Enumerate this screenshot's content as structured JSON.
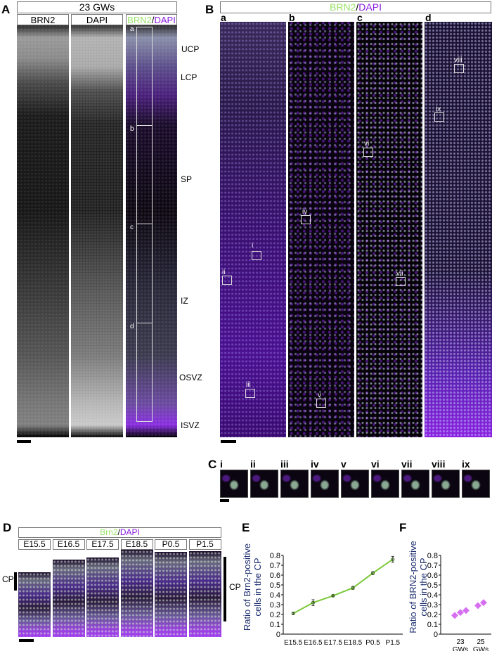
{
  "panelA": {
    "label": "A",
    "title": "23 GWs",
    "columns": [
      "BRN2",
      "DAPI"
    ],
    "merge_label": {
      "green": "BRN2",
      "sep": "/",
      "purple": "DAPI"
    },
    "roi_letters": [
      "a",
      "b",
      "c",
      "d"
    ],
    "zones": [
      "UCP",
      "LCP",
      "SP",
      "IZ",
      "OSVZ",
      "ISVZ"
    ]
  },
  "panelB": {
    "label": "B",
    "title": {
      "green": "BRN2",
      "sep": "/",
      "purple": "DAPI"
    },
    "subpanels": [
      "a",
      "b",
      "c",
      "d"
    ],
    "rois": [
      "i",
      "ii",
      "iii",
      "iv",
      "v",
      "vi",
      "vii",
      "viii",
      "ix"
    ]
  },
  "panelC": {
    "label": "C",
    "thumbs": [
      "i",
      "ii",
      "iii",
      "iv",
      "v",
      "vi",
      "vii",
      "viii",
      "ix"
    ]
  },
  "panelD": {
    "label": "D",
    "title": {
      "green": "Brn2",
      "sep": "/",
      "purple": "DAPI"
    },
    "stages": [
      "E15.5",
      "E16.5",
      "E17.5",
      "E18.5",
      "P0.5",
      "P1.5"
    ],
    "left_marker": "CP",
    "right_marker": "CP"
  },
  "panelE": {
    "label": "E"
  },
  "panelF": {
    "label": "F"
  },
  "colors": {
    "green": "#9be36a",
    "purple": "#8a1ee0",
    "line_green": "#7cc93a",
    "marker_magenta": "#d56ef0",
    "axis_label_blue": "#1e2f70"
  },
  "chart_data": [
    {
      "type": "line",
      "panel": "E",
      "title": "",
      "xlabel": "",
      "ylabel": "Ratio of Brn2-positive cells in the CP",
      "categories": [
        "E15.5",
        "E16.5",
        "E17.5",
        "E18.5",
        "P0.5",
        "P1.5"
      ],
      "values": [
        0.21,
        0.32,
        0.39,
        0.47,
        0.62,
        0.76
      ],
      "error": [
        0.01,
        0.03,
        0.01,
        0.015,
        0.015,
        0.03
      ],
      "ylim": [
        0,
        0.8
      ],
      "yticks": [
        "0",
        "0.1",
        "0.2",
        "0.3",
        "0.4",
        "0.5",
        "0.6",
        "0.7",
        "0.8"
      ],
      "grid": false,
      "series_color": "#7cc93a"
    },
    {
      "type": "scatter",
      "panel": "F",
      "title": "",
      "xlabel": "",
      "ylabel": "Ratio of BRN2-positive cells in the CP",
      "categories": [
        "23 GWs",
        "25 GWs"
      ],
      "series": [
        {
          "name": "23 GWs",
          "values": [
            0.19,
            0.22,
            0.24
          ]
        },
        {
          "name": "25 GWs",
          "values": [
            0.29,
            0.32
          ]
        }
      ],
      "ylim": [
        0,
        0.8
      ],
      "yticks": [
        "0",
        "0.1",
        "0.2",
        "0.3",
        "0.4",
        "0.5",
        "0.6",
        "0.7",
        "0.8"
      ],
      "grid": false,
      "marker": "diamond",
      "marker_color": "#d56ef0"
    }
  ]
}
